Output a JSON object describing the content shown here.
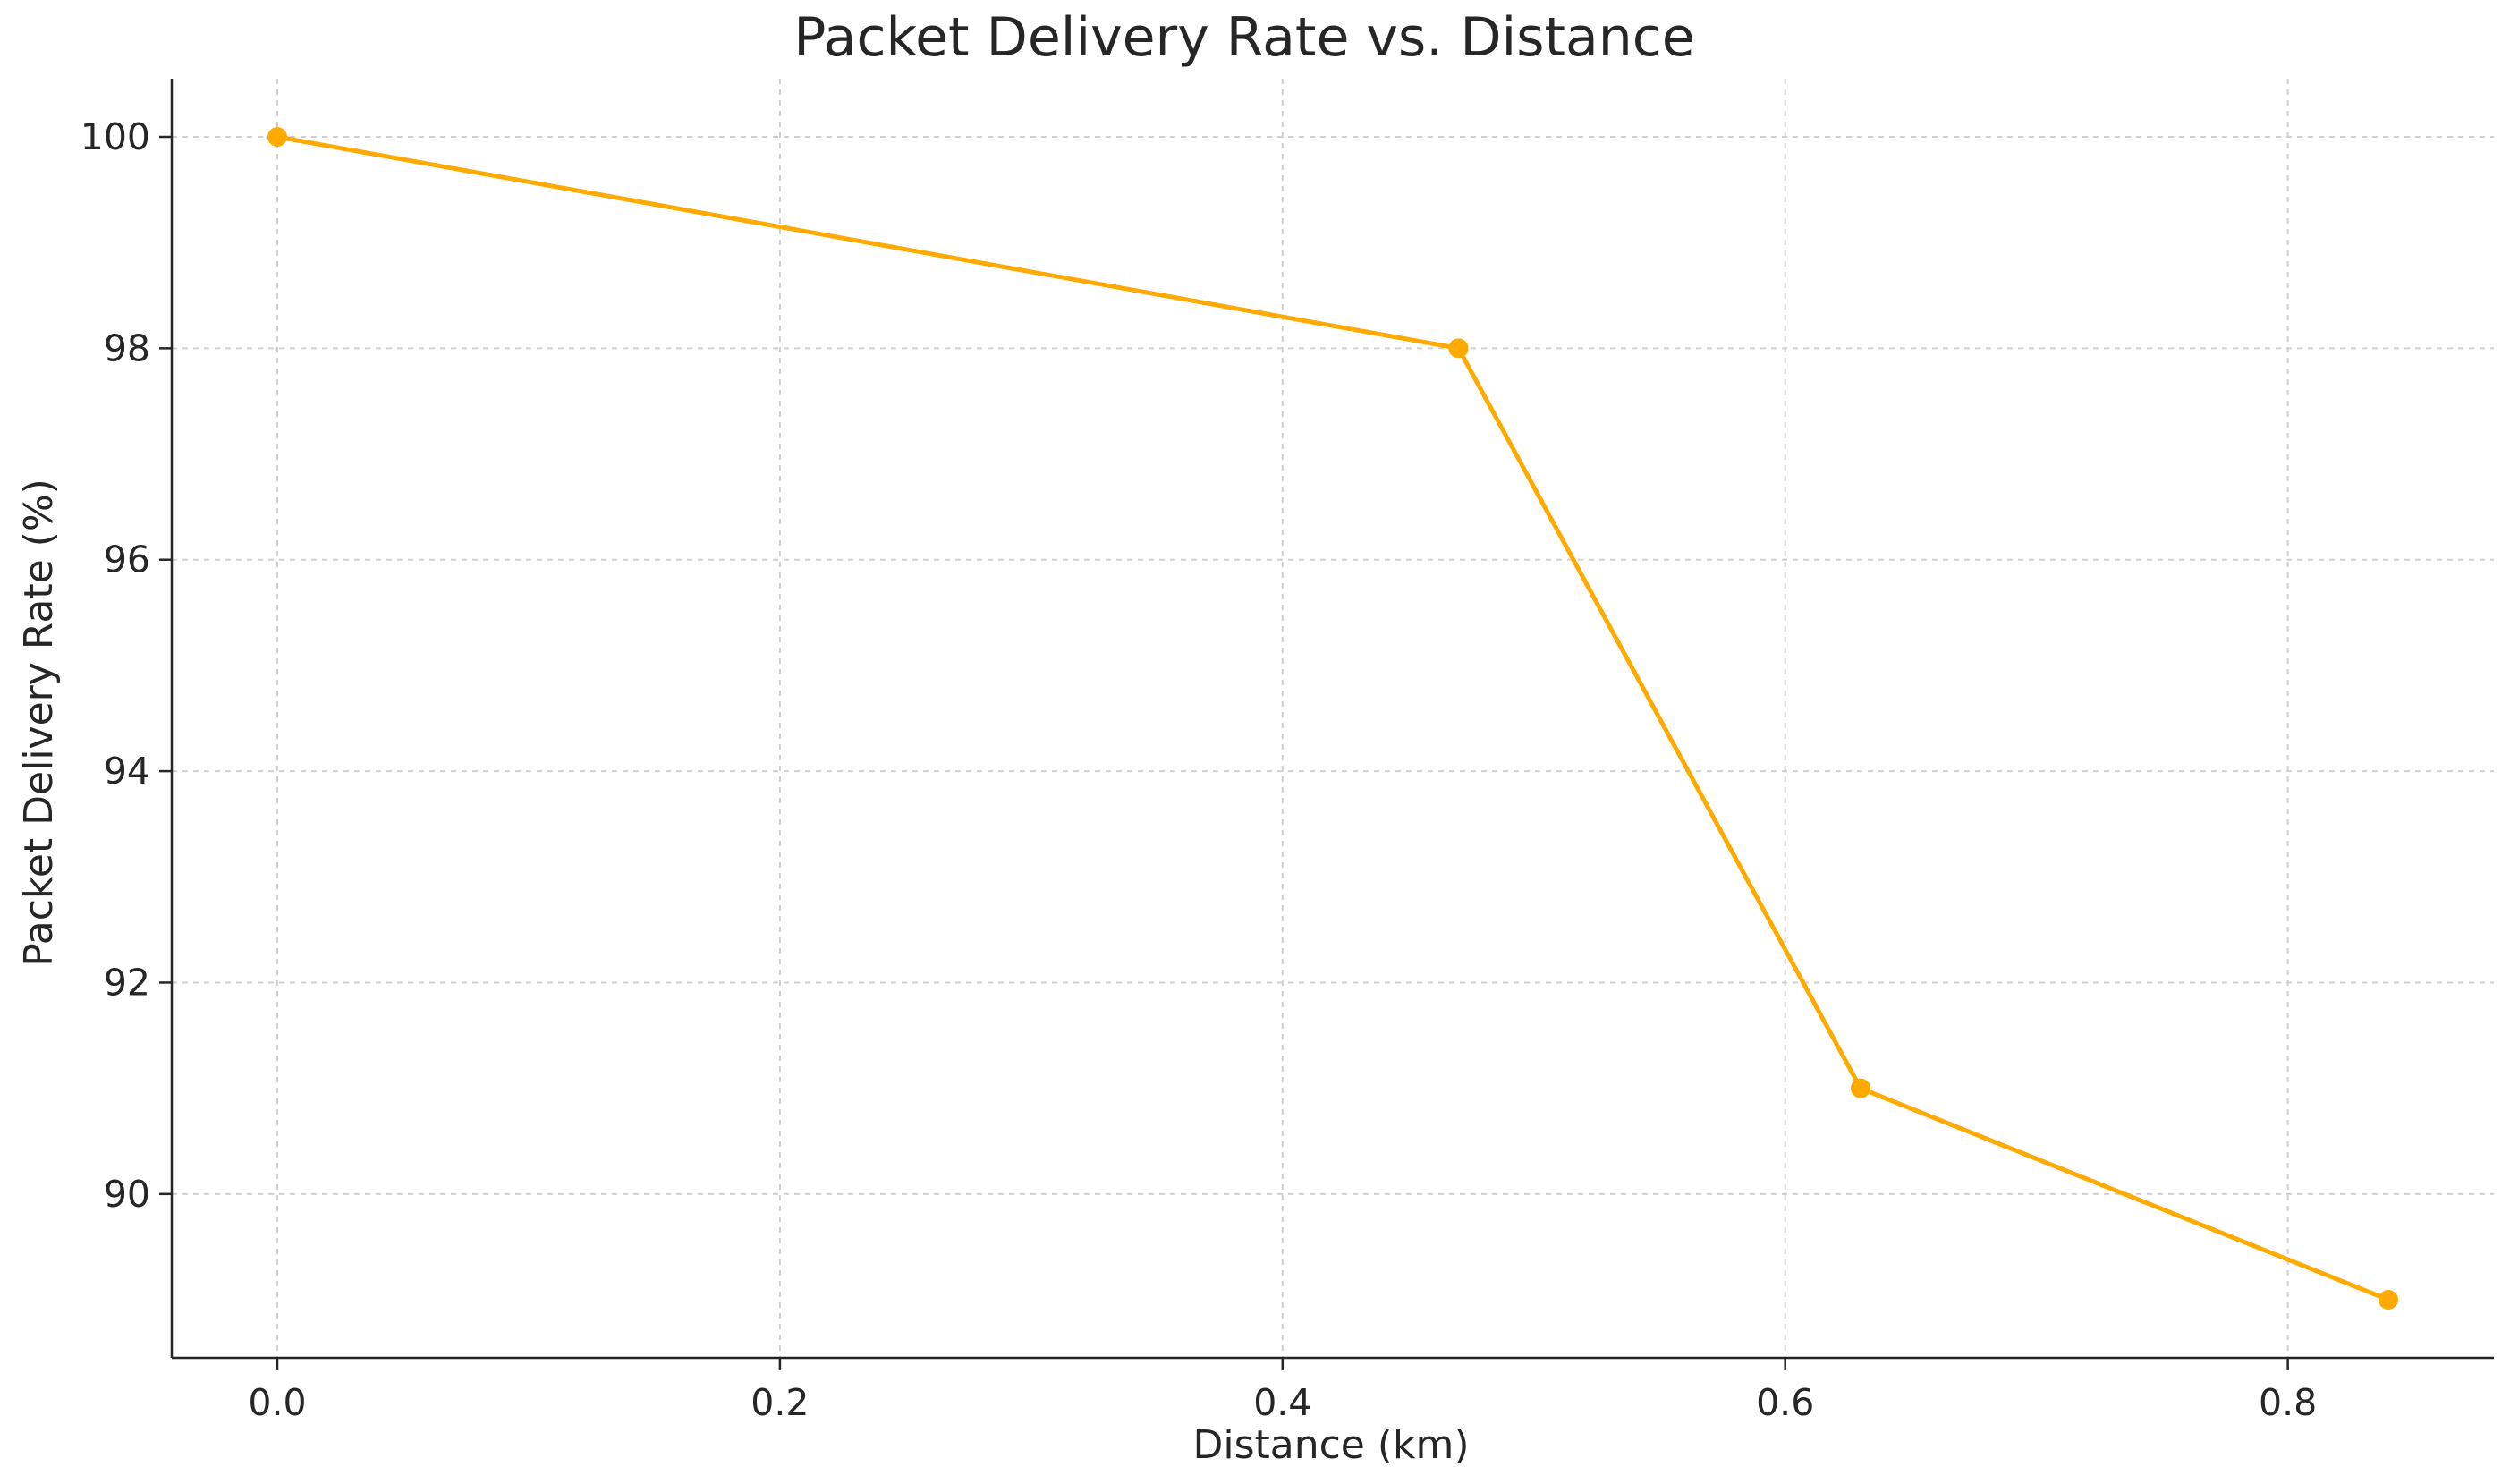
{
  "chart_data": {
    "type": "line",
    "title": "Packet Delivery Rate vs. Distance",
    "xlabel": "Distance (km)",
    "ylabel": "Packet Delivery Rate (%)",
    "x_ticks": [
      "0.0",
      "0.2",
      "0.4",
      "0.6",
      "0.8"
    ],
    "y_ticks": [
      "90",
      "92",
      "94",
      "96",
      "98",
      "100"
    ],
    "xlim": [
      -0.042,
      0.882
    ],
    "ylim": [
      88.45,
      100.55
    ],
    "grid": true,
    "series": [
      {
        "color": "#FFAA00",
        "marker": "circle",
        "x": [
          0.0,
          0.47,
          0.63,
          0.84
        ],
        "y": [
          100,
          98,
          91,
          89
        ]
      }
    ]
  }
}
